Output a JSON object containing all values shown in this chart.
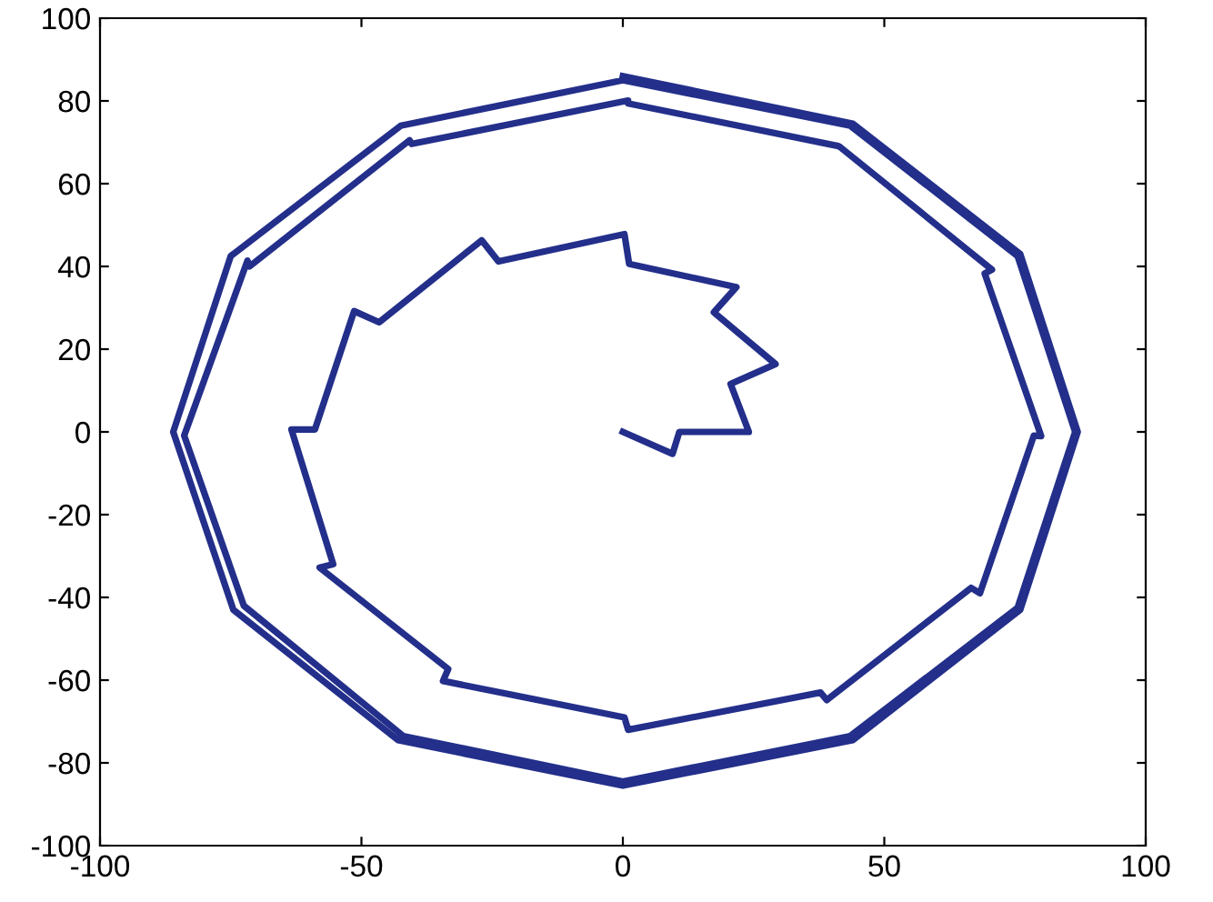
{
  "chart_data": {
    "type": "line",
    "xlim": [
      -100,
      100
    ],
    "ylim": [
      -100,
      100
    ],
    "xticks": [
      -100,
      -50,
      0,
      50,
      100
    ],
    "yticks": [
      -100,
      -80,
      -60,
      -40,
      -20,
      0,
      20,
      40,
      60,
      80,
      100
    ],
    "grid": false,
    "legend": false,
    "marker": "none",
    "line_style": "solid",
    "series": [
      {
        "color": "#232f8a",
        "x": [
          0,
          9.5,
          10.8,
          24.1,
          20.6,
          29.2,
          17.4,
          21.7,
          1.2,
          0.3,
          -23.8,
          -27,
          -46.6,
          -51.4,
          -58.9,
          -63.4,
          -55.4,
          -58,
          -33.4,
          -34.4,
          0.3,
          1,
          37.8,
          39,
          66.6,
          68.3,
          78.6,
          80,
          69.2,
          70.6,
          41.6,
          41.2,
          1,
          1,
          -40.4,
          -40.8,
          -71.4,
          -71.8,
          -83.9,
          -72.5,
          -42,
          0,
          43.5,
          75.5,
          86.5,
          75.5,
          43.5,
          0,
          -42.5,
          -75,
          -86,
          -74.5,
          -43,
          0,
          44,
          76,
          87,
          76,
          44,
          0
        ],
        "values": [
          0,
          -5.3,
          0,
          0,
          11.6,
          16.4,
          28.9,
          35,
          40.6,
          47.8,
          41.2,
          46.3,
          26.5,
          29.2,
          0.6,
          0.6,
          -32,
          -32.8,
          -57.3,
          -60.2,
          -69,
          -72,
          -63,
          -64.8,
          -37.7,
          -39,
          -0.9,
          -1,
          38.3,
          39.2,
          68.8,
          69.1,
          79.4,
          80.1,
          69.6,
          70.5,
          40,
          41.4,
          -0.9,
          -42,
          -73.5,
          -84.5,
          -73.5,
          -42.5,
          0,
          42.5,
          74,
          85,
          74,
          42.5,
          0,
          -43,
          -74.5,
          -85.5,
          -74.5,
          -43,
          0,
          43,
          74.5,
          86
        ]
      }
    ]
  }
}
